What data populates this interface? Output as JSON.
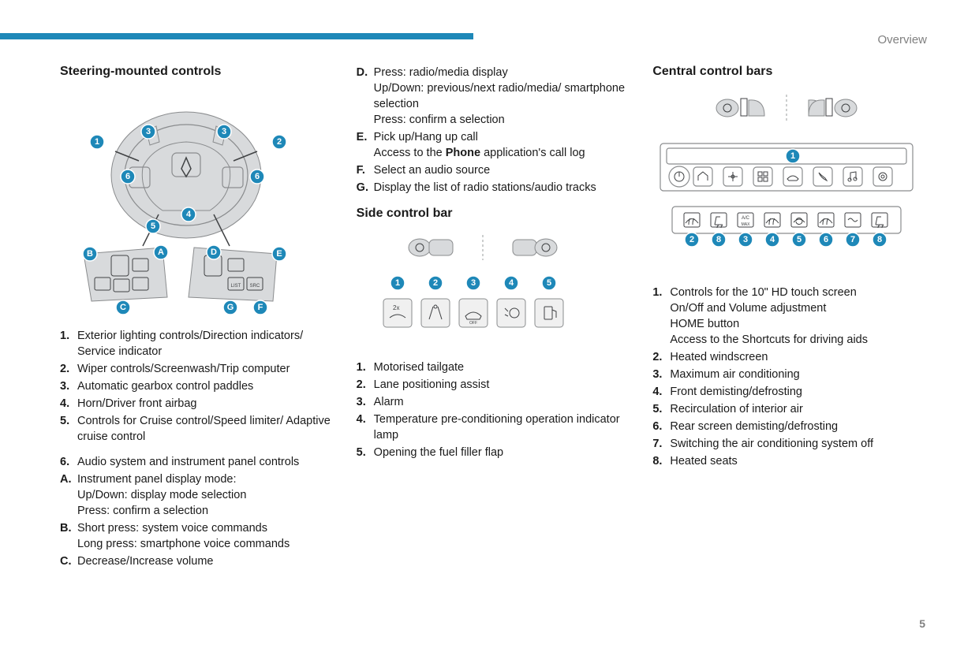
{
  "header": {
    "section_label": "Overview",
    "page_number": "5",
    "band_color": "#1e88b8"
  },
  "col1": {
    "title": "Steering-mounted controls",
    "callouts_top": [
      "1",
      "2",
      "3",
      "4",
      "5",
      "6"
    ],
    "callouts_bottom_left": [
      "A",
      "B",
      "C"
    ],
    "callouts_bottom_right": [
      "D",
      "E",
      "F",
      "G"
    ],
    "list_num": [
      "Exterior lighting controls/Direction indicators/ Service indicator",
      "Wiper controls/Screenwash/Trip computer",
      "Automatic gearbox control paddles",
      "Horn/Driver front airbag",
      "Controls for Cruise control/Speed limiter/ Adaptive cruise control"
    ],
    "item6": "Audio system and instrument panel controls",
    "list_letter": [
      "Instrument panel display mode:\nUp/Down: display mode selection\nPress: confirm a selection",
      "Short press: system voice commands\nLong press: smartphone voice commands",
      "Decrease/Increase volume"
    ]
  },
  "col2": {
    "top_list_letter": [
      "Press: radio/media display\nUp/Down: previous/next radio/media/ smartphone selection\nPress: confirm a selection",
      "Pick up/Hang up call\nAccess to the Phone application's call log",
      "Select an audio source",
      "Display the list of radio stations/audio tracks"
    ],
    "top_list_start": "D",
    "side_title": "Side control bar",
    "side_callouts": [
      "1",
      "2",
      "3",
      "4",
      "5"
    ],
    "side_list": [
      "Motorised tailgate",
      "Lane positioning assist",
      "Alarm",
      "Temperature pre-conditioning operation indicator lamp",
      "Opening the fuel filler flap"
    ]
  },
  "col3": {
    "title": "Central control bars",
    "callouts_row": [
      "1",
      "2",
      "8",
      "3",
      "4",
      "5",
      "6",
      "7",
      "8"
    ],
    "list": [
      "Controls for the 10\" HD touch screen\nOn/Off and Volume adjustment\nHOME button\nAccess to the Shortcuts for driving aids",
      "Heated windscreen",
      "Maximum air conditioning",
      "Front demisting/defrosting",
      "Recirculation of interior air",
      "Rear screen demisting/defrosting",
      "Switching the air conditioning system off",
      "Heated seats"
    ]
  },
  "colors": {
    "accent": "#1e88b8",
    "text": "#1a1a1a",
    "muted": "#808080",
    "shape_fill": "#d8dadc",
    "shape_stroke": "#8a8c8e"
  }
}
